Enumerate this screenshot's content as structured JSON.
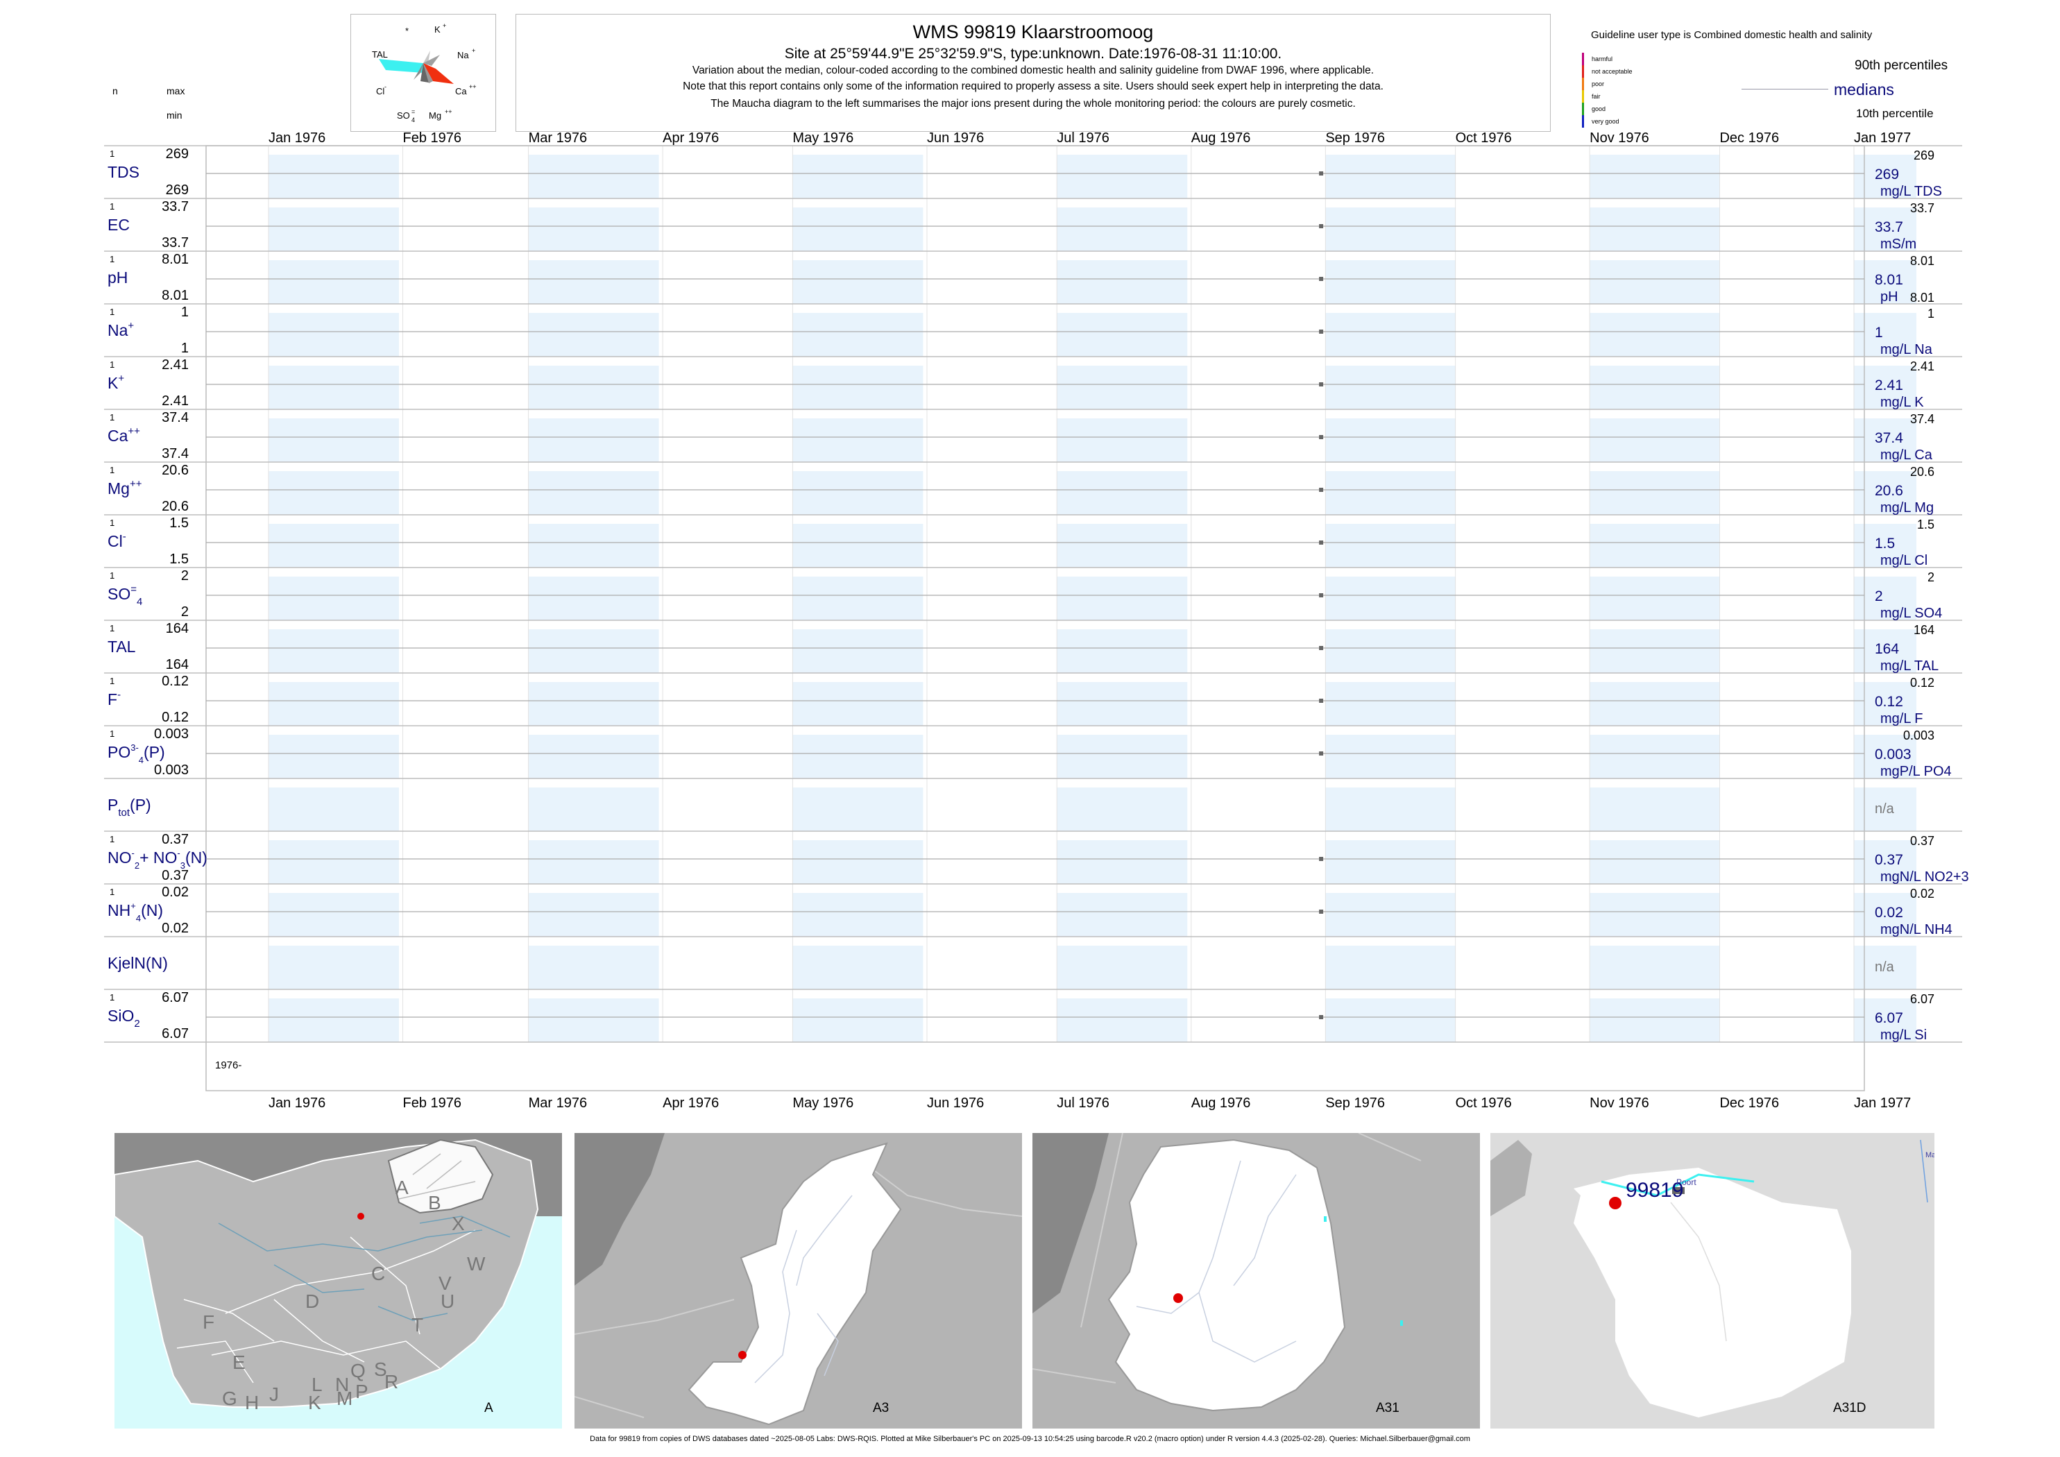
{
  "header": {
    "title": "WMS 99819  Klaarstroomoog",
    "subtitle": "Site at 25°59'44.9\"E 25°32'59.9\"S, type:unknown. Date:1976-08-31 11:10:00.",
    "note1": "Variation about the median,  colour-coded according to the combined domestic health and salinity guideline from DWAF 1996, where applicable.",
    "note2": "Note that this report contains only some of the information required to properly assess a site. Users should seek expert help in interpreting the data.",
    "note3": "The Maucha diagram to the left summarises the major ions present during the whole monitoring period: the colours are purely cosmetic."
  },
  "left_header": {
    "n": "n",
    "max": "max",
    "min": "min"
  },
  "maucha": {
    "star": "*",
    "k": "K",
    "na": "Na",
    "tal": "TAL",
    "cl": "Cl",
    "ca": "Ca",
    "so4": "SO",
    "mg": "Mg"
  },
  "legend": {
    "guideline_title": "Guideline user type is Combined domestic health and salinity",
    "categories": [
      "harmful",
      "not acceptable",
      "poor",
      "fair",
      "good",
      "very good"
    ],
    "category_colors": [
      "#c0007a",
      "#e0201a",
      "#f07a10",
      "#e8c800",
      "#20a020",
      "#1020c0"
    ],
    "p90": "90th percentiles",
    "medians": "medians",
    "p10": "10th percentile"
  },
  "months": [
    "Jan 1976",
    "Feb 1976",
    "Mar 1976",
    "Apr 1976",
    "May 1976",
    "Jun 1976",
    "Jul 1976",
    "Aug 1976",
    "Sep 1976",
    "Oct 1976",
    "Nov 1976",
    "Dec 1976",
    "Jan 1977"
  ],
  "year_label": "1976-",
  "colors": {
    "band": "#e8f3fc",
    "navy": "#0a0a7a",
    "sea": "#d7fbfc",
    "point": "#666666"
  },
  "chart_data": {
    "type": "scatter",
    "x_axis": {
      "type": "date",
      "range": [
        "1976-01-01",
        "1977-01-31"
      ]
    },
    "sample_date": "1976-08-31",
    "series": [
      {
        "name": "TDS",
        "n": "1",
        "max": "269",
        "min": "269",
        "value": 269,
        "median_label": "269",
        "unit": "mg/L TDS",
        "p90": "269",
        "p10": ""
      },
      {
        "name": "EC",
        "n": "1",
        "max": "33.7",
        "min": "33.7",
        "value": 33.7,
        "median_label": "33.7",
        "unit": "mS/m",
        "p90": "33.7",
        "p10": ""
      },
      {
        "name": "pH",
        "n": "1",
        "max": "8.01",
        "min": "8.01",
        "value": 8.01,
        "median_label": "8.01",
        "unit": "pH",
        "p90": "8.01",
        "p10": "8.01"
      },
      {
        "name": "Na",
        "n": "1",
        "max": "1",
        "min": "1",
        "value": 1,
        "median_label": "1",
        "unit": "mg/L Na",
        "p90": "1",
        "p10": ""
      },
      {
        "name": "K",
        "n": "1",
        "max": "2.41",
        "min": "2.41",
        "value": 2.41,
        "median_label": "2.41",
        "unit": "mg/L K",
        "p90": "2.41",
        "p10": ""
      },
      {
        "name": "Ca",
        "n": "1",
        "max": "37.4",
        "min": "37.4",
        "value": 37.4,
        "median_label": "37.4",
        "unit": "mg/L Ca",
        "p90": "37.4",
        "p10": ""
      },
      {
        "name": "Mg",
        "n": "1",
        "max": "20.6",
        "min": "20.6",
        "value": 20.6,
        "median_label": "20.6",
        "unit": "mg/L Mg",
        "p90": "20.6",
        "p10": ""
      },
      {
        "name": "Cl",
        "n": "1",
        "max": "1.5",
        "min": "1.5",
        "value": 1.5,
        "median_label": "1.5",
        "unit": "mg/L Cl",
        "p90": "1.5",
        "p10": ""
      },
      {
        "name": "SO4",
        "n": "1",
        "max": "2",
        "min": "2",
        "value": 2,
        "median_label": "2",
        "unit": "mg/L SO4",
        "p90": "2",
        "p10": ""
      },
      {
        "name": "TAL",
        "n": "1",
        "max": "164",
        "min": "164",
        "value": 164,
        "median_label": "164",
        "unit": "mg/L TAL",
        "p90": "164",
        "p10": ""
      },
      {
        "name": "F",
        "n": "1",
        "max": "0.12",
        "min": "0.12",
        "value": 0.12,
        "median_label": "0.12",
        "unit": "mg/L F",
        "p90": "0.12",
        "p10": ""
      },
      {
        "name": "PO4(P)",
        "n": "1",
        "max": "0.003",
        "min": "0.003",
        "value": 0.003,
        "median_label": "0.003",
        "unit": "mgP/L PO4",
        "p90": "0.003",
        "p10": ""
      },
      {
        "name": "Ptot(P)",
        "n": "",
        "max": "",
        "min": "",
        "value": null,
        "median_label": "n/a",
        "unit": "",
        "p90": "",
        "p10": ""
      },
      {
        "name": "NO2+NO3(N)",
        "n": "1",
        "max": "0.37",
        "min": "0.37",
        "value": 0.37,
        "median_label": "0.37",
        "unit": "mgN/L NO2+3",
        "p90": "0.37",
        "p10": ""
      },
      {
        "name": "NH4(N)",
        "n": "1",
        "max": "0.02",
        "min": "0.02",
        "value": 0.02,
        "median_label": "0.02",
        "unit": "mgN/L NH4",
        "p90": "0.02",
        "p10": ""
      },
      {
        "name": "KjelN(N)",
        "n": "",
        "max": "",
        "min": "",
        "value": null,
        "median_label": "n/a",
        "unit": "",
        "p90": "",
        "p10": ""
      },
      {
        "name": "SiO2",
        "n": "1",
        "max": "6.07",
        "min": "6.07",
        "value": 6.07,
        "median_label": "6.07",
        "unit": "mg/L Si",
        "p90": "6.07",
        "p10": ""
      }
    ]
  },
  "maps": [
    {
      "name": "A",
      "labels": [
        "A",
        "B",
        "X",
        "W",
        "C",
        "V",
        "U",
        "D",
        "F",
        "T",
        "E",
        "L",
        "N",
        "Q",
        "S",
        "G",
        "H",
        "J",
        "K",
        "M",
        "P",
        "R"
      ]
    },
    {
      "name": "A3"
    },
    {
      "name": "A31"
    },
    {
      "name": "A31D",
      "site": "99819",
      "place": "Poort",
      "edge": "Ma"
    }
  ],
  "footer": "Data for 99819 from copies of DWS databases dated ~2025-08-05 Labs: DWS-RQIS. Plotted at Mike Silberbauer's PC on 2025-09-13 10:54:25 using barcode.R v20.2 (macro option) under R version 4.4.3 (2025-02-28). Queries: Michael.Silberbauer@gmail.com"
}
